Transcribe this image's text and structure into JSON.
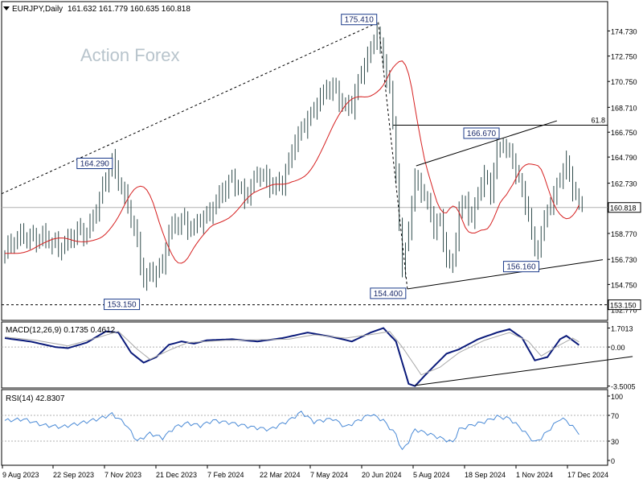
{
  "header": {
    "symbol": "EURJPY,Daily",
    "ohlc": "161.632 161.779 160.635 160.818"
  },
  "watermark": "Action Forex",
  "colors": {
    "bars": "#2e4a4a",
    "ma": "#d62020",
    "macd": "#0a1a7a",
    "signal": "#a8a8a8",
    "rsi": "#4a8ad6",
    "lines": "#000000",
    "grid": "#b0b0b0"
  },
  "chart_data": [
    {
      "type": "ohlc",
      "panel": "price",
      "title": "EURJPY,Daily",
      "y_ticks": [
        "174.730",
        "172.750",
        "170.750",
        "168.710",
        "166.750",
        "164.790",
        "162.730",
        "160.818",
        "158.770",
        "156.730",
        "154.750",
        "153.150",
        "152.770"
      ],
      "x_ticks": [
        "9 Aug 2023",
        "22 Sep 2023",
        "7 Nov 2023",
        "21 Dec 2023",
        "7 Feb 2024",
        "22 Mar 2024",
        "7 May 2024",
        "20 Jun 2024",
        "5 Aug 2024",
        "18 Sep 2024",
        "1 Nov 2024",
        "17 Dec 2024"
      ],
      "ylim": [
        152.3,
        175.9
      ],
      "last_price": "160.818",
      "fib_level": {
        "label": "61.8",
        "value": 167.3
      },
      "support_level": {
        "label": "153.150",
        "value": 153.15
      },
      "annotations": [
        {
          "label": "175.410",
          "date_index": 59.2,
          "value": 175.41
        },
        {
          "label": "164.290",
          "date_index": 17.3,
          "value": 164.29
        },
        {
          "label": "153.150",
          "date_index": 21.6,
          "value": 153.15
        },
        {
          "label": "166.670",
          "date_index": 78.6,
          "value": 166.67
        },
        {
          "label": "154.400",
          "date_index": 63.8,
          "value": 154.4
        },
        {
          "label": "156.160",
          "date_index": 84.9,
          "value": 156.16
        }
      ],
      "close_path": [
        {
          "i": 0,
          "v": 157.2
        },
        {
          "i": 3,
          "v": 158.8
        },
        {
          "i": 6,
          "v": 158.2
        },
        {
          "i": 9,
          "v": 157.9
        },
        {
          "i": 11,
          "v": 158.5
        },
        {
          "i": 13,
          "v": 159.0
        },
        {
          "i": 15,
          "v": 161.5
        },
        {
          "i": 17,
          "v": 164.2
        },
        {
          "i": 18,
          "v": 163.3
        },
        {
          "i": 20,
          "v": 160.2
        },
        {
          "i": 22,
          "v": 155.0
        },
        {
          "i": 23,
          "v": 155.8
        },
        {
          "i": 24,
          "v": 156.0
        },
        {
          "i": 25,
          "v": 156.3
        },
        {
          "i": 26,
          "v": 158.7
        },
        {
          "i": 28,
          "v": 160.0
        },
        {
          "i": 30,
          "v": 159.2
        },
        {
          "i": 32,
          "v": 160.0
        },
        {
          "i": 34,
          "v": 162.0
        },
        {
          "i": 36,
          "v": 162.8
        },
        {
          "i": 38,
          "v": 161.8
        },
        {
          "i": 40,
          "v": 163.5
        },
        {
          "i": 42,
          "v": 162.5
        },
        {
          "i": 44,
          "v": 163.0
        },
        {
          "i": 46,
          "v": 165.8
        },
        {
          "i": 47,
          "v": 166.8
        },
        {
          "i": 48,
          "v": 168.0
        },
        {
          "i": 50,
          "v": 169.5
        },
        {
          "i": 52,
          "v": 170.2
        },
        {
          "i": 54,
          "v": 169.0
        },
        {
          "i": 55,
          "v": 168.8
        },
        {
          "i": 56,
          "v": 170.5
        },
        {
          "i": 58,
          "v": 173.5
        },
        {
          "i": 59,
          "v": 175.0
        },
        {
          "i": 60,
          "v": 172.0
        },
        {
          "i": 61,
          "v": 170.2
        },
        {
          "i": 62,
          "v": 163.5
        },
        {
          "i": 63,
          "v": 156.0
        },
        {
          "i": 64,
          "v": 159.5
        },
        {
          "i": 65,
          "v": 163.0
        },
        {
          "i": 66,
          "v": 162.0
        },
        {
          "i": 67,
          "v": 161.0
        },
        {
          "i": 68,
          "v": 159.5
        },
        {
          "i": 69,
          "v": 160.0
        },
        {
          "i": 70,
          "v": 156.8
        },
        {
          "i": 71,
          "v": 156.0
        },
        {
          "i": 72,
          "v": 160.5
        },
        {
          "i": 73,
          "v": 161.5
        },
        {
          "i": 74,
          "v": 160.0
        },
        {
          "i": 75,
          "v": 162.0
        },
        {
          "i": 76,
          "v": 163.0
        },
        {
          "i": 77,
          "v": 162.0
        },
        {
          "i": 78,
          "v": 165.5
        },
        {
          "i": 79,
          "v": 166.0
        },
        {
          "i": 80,
          "v": 165.0
        },
        {
          "i": 81,
          "v": 163.5
        },
        {
          "i": 82,
          "v": 162.0
        },
        {
          "i": 83,
          "v": 160.5
        },
        {
          "i": 84,
          "v": 157.5
        },
        {
          "i": 85,
          "v": 158.5
        },
        {
          "i": 86,
          "v": 160.5
        },
        {
          "i": 87,
          "v": 161.5
        },
        {
          "i": 88,
          "v": 163.5
        },
        {
          "i": 89,
          "v": 164.5
        },
        {
          "i": 90,
          "v": 162.3
        },
        {
          "i": 91,
          "v": 160.82
        }
      ]
    },
    {
      "type": "line",
      "panel": "macd",
      "title": "MACD(12,26,9) 0.1735 0.4612",
      "y_ticks": [
        "1.7013",
        "0.00",
        "-3.5005"
      ],
      "ylim": [
        -3.6,
        2.1
      ],
      "series": [
        {
          "role": "macd",
          "points": [
            {
              "i": 0,
              "v": 0.8
            },
            {
              "i": 4,
              "v": 0.5
            },
            {
              "i": 8,
              "v": 0.0
            },
            {
              "i": 10,
              "v": -0.1
            },
            {
              "i": 13,
              "v": 0.4
            },
            {
              "i": 16,
              "v": 1.4
            },
            {
              "i": 18,
              "v": 1.3
            },
            {
              "i": 20,
              "v": -0.5
            },
            {
              "i": 22,
              "v": -1.4
            },
            {
              "i": 24,
              "v": -0.9
            },
            {
              "i": 26,
              "v": 0.2
            },
            {
              "i": 28,
              "v": 0.5
            },
            {
              "i": 30,
              "v": 0.3
            },
            {
              "i": 32,
              "v": 0.6
            },
            {
              "i": 36,
              "v": 0.7
            },
            {
              "i": 40,
              "v": 0.5
            },
            {
              "i": 44,
              "v": 0.8
            },
            {
              "i": 48,
              "v": 1.3
            },
            {
              "i": 52,
              "v": 0.9
            },
            {
              "i": 55,
              "v": 0.5
            },
            {
              "i": 58,
              "v": 1.3
            },
            {
              "i": 60,
              "v": 1.7
            },
            {
              "i": 62,
              "v": 0.5
            },
            {
              "i": 64,
              "v": -3.3
            },
            {
              "i": 65,
              "v": -3.5
            },
            {
              "i": 67,
              "v": -2.3
            },
            {
              "i": 70,
              "v": -0.6
            },
            {
              "i": 72,
              "v": -0.2
            },
            {
              "i": 75,
              "v": 0.7
            },
            {
              "i": 78,
              "v": 1.3
            },
            {
              "i": 80,
              "v": 1.6
            },
            {
              "i": 82,
              "v": 0.8
            },
            {
              "i": 84,
              "v": -1.2
            },
            {
              "i": 86,
              "v": -0.9
            },
            {
              "i": 88,
              "v": 0.7
            },
            {
              "i": 89,
              "v": 1.0
            },
            {
              "i": 90,
              "v": 0.6
            },
            {
              "i": 91,
              "v": 0.1735
            }
          ]
        },
        {
          "role": "signal",
          "points": [
            {
              "i": 0,
              "v": 0.9
            },
            {
              "i": 5,
              "v": 0.6
            },
            {
              "i": 10,
              "v": 0.1
            },
            {
              "i": 15,
              "v": 0.9
            },
            {
              "i": 18,
              "v": 1.4
            },
            {
              "i": 21,
              "v": -0.2
            },
            {
              "i": 23,
              "v": -1.1
            },
            {
              "i": 26,
              "v": -0.3
            },
            {
              "i": 29,
              "v": 0.4
            },
            {
              "i": 35,
              "v": 0.6
            },
            {
              "i": 45,
              "v": 0.7
            },
            {
              "i": 49,
              "v": 1.1
            },
            {
              "i": 54,
              "v": 0.8
            },
            {
              "i": 59,
              "v": 1.2
            },
            {
              "i": 61,
              "v": 1.4
            },
            {
              "i": 63,
              "v": 0.0
            },
            {
              "i": 66,
              "v": -2.5
            },
            {
              "i": 69,
              "v": -1.8
            },
            {
              "i": 72,
              "v": -0.5
            },
            {
              "i": 76,
              "v": 0.6
            },
            {
              "i": 80,
              "v": 1.3
            },
            {
              "i": 83,
              "v": 0.5
            },
            {
              "i": 85,
              "v": -0.8
            },
            {
              "i": 88,
              "v": 0.2
            },
            {
              "i": 90,
              "v": 0.8
            },
            {
              "i": 91,
              "v": 0.4612
            }
          ]
        }
      ],
      "trendline": [
        {
          "i": 65,
          "v": -3.45
        },
        {
          "i": 99.5,
          "v": -0.85
        }
      ]
    },
    {
      "type": "line",
      "panel": "rsi",
      "title": "RSI(14) 42.8307",
      "y_ticks": [
        "100",
        "70",
        "30",
        "0"
      ],
      "ylim": [
        0,
        100
      ],
      "levels": [
        70,
        30
      ],
      "points": [
        {
          "i": 0,
          "v": 62
        },
        {
          "i": 3,
          "v": 64
        },
        {
          "i": 6,
          "v": 55
        },
        {
          "i": 9,
          "v": 52
        },
        {
          "i": 12,
          "v": 58
        },
        {
          "i": 15,
          "v": 65
        },
        {
          "i": 17,
          "v": 72
        },
        {
          "i": 19,
          "v": 58
        },
        {
          "i": 21,
          "v": 30
        },
        {
          "i": 23,
          "v": 42
        },
        {
          "i": 25,
          "v": 35
        },
        {
          "i": 27,
          "v": 52
        },
        {
          "i": 29,
          "v": 58
        },
        {
          "i": 31,
          "v": 54
        },
        {
          "i": 33,
          "v": 62
        },
        {
          "i": 36,
          "v": 58
        },
        {
          "i": 39,
          "v": 52
        },
        {
          "i": 42,
          "v": 48
        },
        {
          "i": 45,
          "v": 62
        },
        {
          "i": 47,
          "v": 75
        },
        {
          "i": 49,
          "v": 60
        },
        {
          "i": 52,
          "v": 65
        },
        {
          "i": 54,
          "v": 52
        },
        {
          "i": 56,
          "v": 62
        },
        {
          "i": 58,
          "v": 72
        },
        {
          "i": 60,
          "v": 62
        },
        {
          "i": 62,
          "v": 40
        },
        {
          "i": 63,
          "v": 15
        },
        {
          "i": 64,
          "v": 30
        },
        {
          "i": 65,
          "v": 48
        },
        {
          "i": 67,
          "v": 42
        },
        {
          "i": 69,
          "v": 35
        },
        {
          "i": 71,
          "v": 28
        },
        {
          "i": 72,
          "v": 48
        },
        {
          "i": 74,
          "v": 55
        },
        {
          "i": 76,
          "v": 60
        },
        {
          "i": 78,
          "v": 68
        },
        {
          "i": 80,
          "v": 65
        },
        {
          "i": 82,
          "v": 48
        },
        {
          "i": 84,
          "v": 28
        },
        {
          "i": 85,
          "v": 35
        },
        {
          "i": 86,
          "v": 45
        },
        {
          "i": 88,
          "v": 65
        },
        {
          "i": 89,
          "v": 62
        },
        {
          "i": 90,
          "v": 52
        },
        {
          "i": 91,
          "v": 42.8
        }
      ]
    }
  ]
}
